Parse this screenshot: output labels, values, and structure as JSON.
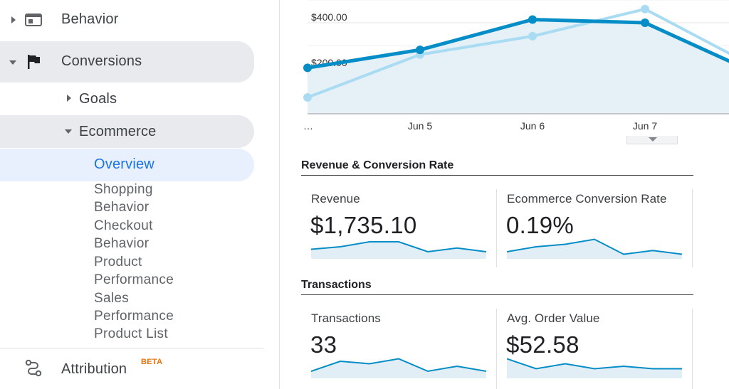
{
  "sidebar": {
    "behavior": {
      "label": "Behavior",
      "icon": "browser-window-icon"
    },
    "conversions": {
      "label": "Conversions",
      "icon": "flag-icon"
    },
    "goals": {
      "label": "Goals"
    },
    "ecommerce": {
      "label": "Ecommerce"
    },
    "overview": {
      "label": "Overview"
    },
    "sub_items": [
      "Shopping",
      "Behavior",
      "Checkout",
      "Behavior",
      "Product",
      "Performance",
      "Sales",
      "Performance",
      "Product List"
    ],
    "attribution": {
      "label": "Attribution",
      "badge": "BETA",
      "icon": "attribution-path-icon"
    }
  },
  "colors": {
    "series_primary": "#058dc7",
    "series_secondary": "#a9dcf2",
    "active_nav": "#1a73e8",
    "badge": "#e8710a"
  },
  "chart_data": {
    "type": "line",
    "title": "",
    "categories": [
      "…",
      "Jun 5",
      "Jun 6",
      "Jun 7",
      ""
    ],
    "y_ticks": [
      "$200.00",
      "$400.00"
    ],
    "series": [
      {
        "values": [
          202,
          281,
          414,
          400,
          175
        ]
      },
      {
        "values": [
          72,
          260,
          341,
          460,
          200
        ]
      }
    ],
    "ylim": [
      0,
      500
    ],
    "grid": true,
    "area_fill_series": 0
  },
  "sections": {
    "revenue": {
      "title": "Revenue & Conversion Rate",
      "cards": [
        {
          "label": "Revenue",
          "value": "$1,735.10",
          "spark": [
            3,
            4,
            6,
            6,
            2,
            3.5,
            2
          ]
        },
        {
          "label": "Ecommerce Conversion Rate",
          "value": "0.19%",
          "spark": [
            2,
            4,
            5,
            7,
            1,
            2.5,
            1
          ]
        }
      ]
    },
    "transactions": {
      "title": "Transactions",
      "cards": [
        {
          "label": "Transactions",
          "value": "33",
          "spark": [
            2,
            6,
            5,
            7,
            2,
            4,
            2
          ]
        },
        {
          "label": "Avg. Order Value",
          "value": "$52.58",
          "spark": [
            7,
            3,
            5,
            3,
            4,
            3,
            3
          ]
        }
      ]
    }
  }
}
